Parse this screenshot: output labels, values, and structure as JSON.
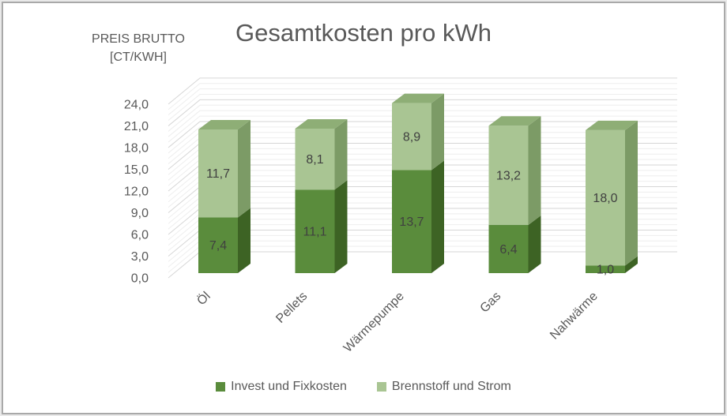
{
  "window": {
    "background": "#ffffff",
    "border_color": "#a9a9a9"
  },
  "chart_data": {
    "type": "bar",
    "stacked": true,
    "style": "3d",
    "title": "Gesamtkosten pro kWh",
    "y_axis_title_lines": [
      "PREIS BRUTTO",
      "[CT/KWH]"
    ],
    "categories": [
      "Öl",
      "Pellets",
      "Wärmepumpe",
      "Gas",
      "Nahwärme"
    ],
    "series": [
      {
        "name": "Invest und Fixkosten",
        "values": [
          7.4,
          11.1,
          13.7,
          6.4,
          1.0
        ],
        "color": "#5a8c3c",
        "side_color": "#3d6324",
        "top_color": "#4a7a30"
      },
      {
        "name": "Brennstoff und Strom",
        "values": [
          11.7,
          8.1,
          8.9,
          13.2,
          18.0
        ],
        "color": "#a9c593",
        "side_color": "#7c9b66",
        "top_color": "#8eae76"
      }
    ],
    "data_labels": [
      [
        "7,4",
        "11,1",
        "13,7",
        "6,4",
        "1,0"
      ],
      [
        "11,7",
        "8,1",
        "8,9",
        "13,2",
        "18,0"
      ]
    ],
    "ylim": [
      0,
      24
    ],
    "ytick_step": 3,
    "yminor_step": 0.75,
    "ytick_labels": [
      "0,0",
      "3,0",
      "6,0",
      "9,0",
      "12,0",
      "15,0",
      "18,0",
      "21,0",
      "24,0"
    ],
    "grid": true,
    "legend_position": "bottom",
    "colors": {
      "title_text": "#595959",
      "axis_text": "#595959",
      "bar_label_text": "#404040",
      "gridline_major": "#d6d6d6",
      "gridline_minor": "#eeeeee"
    }
  }
}
